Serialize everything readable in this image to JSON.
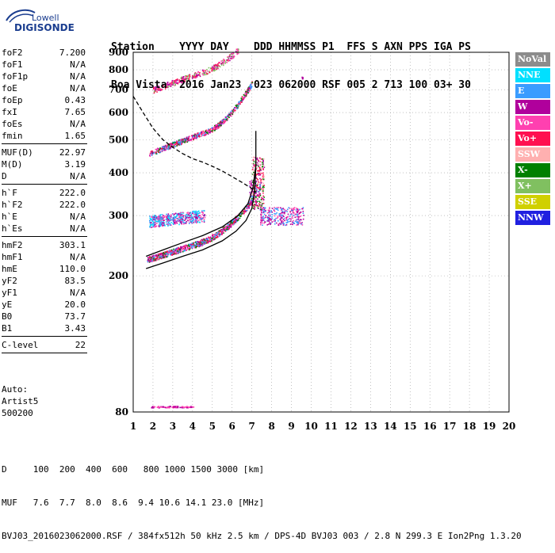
{
  "logo": {
    "brand": "Lowell",
    "name": "DIGISONDE"
  },
  "header": {
    "line1": "Station    YYYY DAY    DDD HHMMSS P1  FFS S AXN PPS IGA PS",
    "line2": "Boa Vista  2016 Jan23  023 062000 RSF 005 2 713 100 03+ 30"
  },
  "params": {
    "group1": [
      {
        "label": "foF2",
        "value": "7.200"
      },
      {
        "label": "foF1",
        "value": "N/A"
      },
      {
        "label": "foF1p",
        "value": "N/A"
      },
      {
        "label": "foE",
        "value": "N/A"
      },
      {
        "label": "foEp",
        "value": "0.43"
      },
      {
        "label": "fxI",
        "value": "7.65"
      },
      {
        "label": "foEs",
        "value": "N/A"
      },
      {
        "label": "fmin",
        "value": "1.65"
      }
    ],
    "group2": [
      {
        "label": "MUF(D)",
        "value": "22.97"
      },
      {
        "label": "M(D)",
        "value": "3.19"
      },
      {
        "label": "D",
        "value": "N/A"
      }
    ],
    "group3": [
      {
        "label": "h`F",
        "value": "222.0"
      },
      {
        "label": "h`F2",
        "value": "222.0"
      },
      {
        "label": "h`E",
        "value": "N/A"
      },
      {
        "label": "h`Es",
        "value": "N/A"
      }
    ],
    "group4": [
      {
        "label": "hmF2",
        "value": "303.1"
      },
      {
        "label": "hmF1",
        "value": "N/A"
      },
      {
        "label": "hmE",
        "value": "110.0"
      },
      {
        "label": "yF2",
        "value": "83.5"
      },
      {
        "label": "yF1",
        "value": "N/A"
      },
      {
        "label": "yE",
        "value": "20.0"
      },
      {
        "label": "B0",
        "value": "73.7"
      },
      {
        "label": "B1",
        "value": "3.43"
      }
    ],
    "group5": [
      {
        "label": "C-level",
        "value": "22"
      }
    ]
  },
  "auto": {
    "l1": "Auto:",
    "l2": "Artist5",
    "l3": "500200"
  },
  "legend": [
    {
      "label": "NoVal",
      "color": "#8c8c8c"
    },
    {
      "label": "NNE",
      "color": "#00e0ff"
    },
    {
      "label": "E",
      "color": "#3a9cff"
    },
    {
      "label": "W",
      "color": "#b0009c"
    },
    {
      "label": "Vo-",
      "color": "#ff40b0"
    },
    {
      "label": "Vo+",
      "color": "#ff1050"
    },
    {
      "label": "SSW",
      "color": "#ffb0b0"
    },
    {
      "label": "X-",
      "color": "#008000"
    },
    {
      "label": "X+",
      "color": "#80c060"
    },
    {
      "label": "SSE",
      "color": "#d0d000"
    },
    {
      "label": "NNW",
      "color": "#2020e0"
    }
  ],
  "footer": {
    "d_line": "D     100  200  400  600   800 1000 1500 3000 [km]",
    "muf_line": "MUF   7.6  7.7  8.0  8.6  9.4 10.6 14.1 23.0 [MHz]",
    "file_line": "BVJ03_2016023062000.RSF / 384fx512h 50 kHz 2.5 km / DPS-4D BVJ03 003 / 2.8 N 299.3 E Ion2Png 1.3.20"
  },
  "chart_data": {
    "type": "scatter",
    "title": "",
    "xlabel": "",
    "ylabel": "",
    "xlim": [
      1,
      20
    ],
    "ylim": [
      80,
      900
    ],
    "x_ticks": [
      1,
      2,
      3,
      4,
      5,
      6,
      7,
      8,
      9,
      10,
      11,
      12,
      13,
      14,
      15,
      16,
      17,
      18,
      19,
      20
    ],
    "y_ticks": [
      80,
      200,
      300,
      400,
      500,
      600,
      700,
      800,
      900
    ],
    "y_scale": "log",
    "grid": "dotted",
    "series": [
      {
        "name": "",
        "kind": "line",
        "color": "#000000",
        "values": [
          [
            1.65,
            210
          ],
          [
            2.5,
            218
          ],
          [
            3.5,
            228
          ],
          [
            4.5,
            238
          ],
          [
            5.5,
            253
          ],
          [
            6.2,
            270
          ],
          [
            6.7,
            290
          ],
          [
            7.0,
            315
          ],
          [
            7.15,
            360
          ],
          [
            7.2,
            420
          ],
          [
            7.2,
            530
          ]
        ]
      },
      {
        "name": "",
        "kind": "line",
        "color": "#000000",
        "values": [
          [
            1.65,
            228
          ],
          [
            2.5,
            238
          ],
          [
            3.5,
            250
          ],
          [
            4.5,
            262
          ],
          [
            5.5,
            278
          ],
          [
            6.3,
            300
          ],
          [
            6.8,
            325
          ],
          [
            7.05,
            360
          ],
          [
            7.2,
            420
          ]
        ]
      },
      {
        "name": "",
        "kind": "dashed",
        "color": "#000000",
        "values": [
          [
            1.0,
            670
          ],
          [
            1.5,
            600
          ],
          [
            2.0,
            540
          ],
          [
            2.5,
            500
          ],
          [
            3.0,
            475
          ],
          [
            3.5,
            455
          ],
          [
            4.0,
            440
          ],
          [
            4.5,
            430
          ],
          [
            5.0,
            418
          ],
          [
            5.5,
            405
          ],
          [
            6.0,
            390
          ],
          [
            6.5,
            375
          ],
          [
            7.0,
            360
          ],
          [
            7.2,
            350
          ]
        ]
      }
    ]
  }
}
